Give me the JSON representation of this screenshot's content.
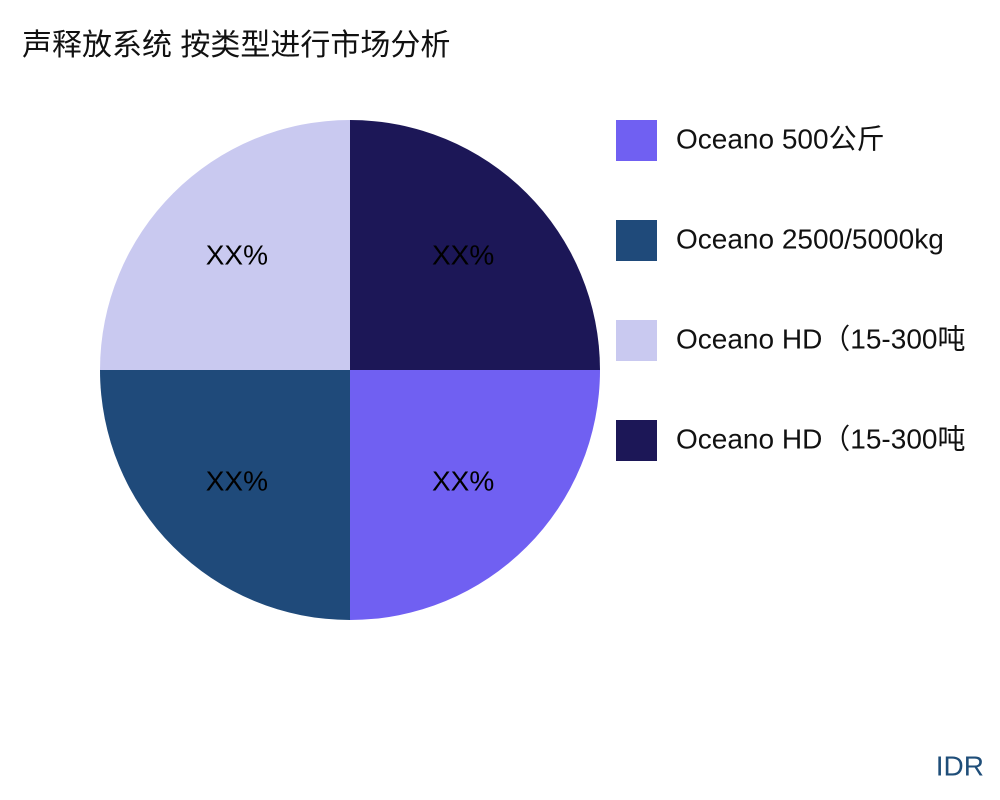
{
  "chart_data": {
    "type": "pie",
    "title": "声释放系统 按类型进行市场分析",
    "categories": [
      "Oceano 500公斤",
      "Oceano 2500/5000kg",
      "Oceano HD（15-300吨",
      "Oceano HD（15-300吨"
    ],
    "values": [
      25,
      25,
      25,
      25
    ],
    "value_labels": [
      "XX%",
      "XX%",
      "XX%",
      "XX%"
    ],
    "colors": [
      "#7060f2",
      "#1f4a7a",
      "#c9c9f0",
      "#1c1757"
    ],
    "legend": "right",
    "source": "IDR"
  }
}
